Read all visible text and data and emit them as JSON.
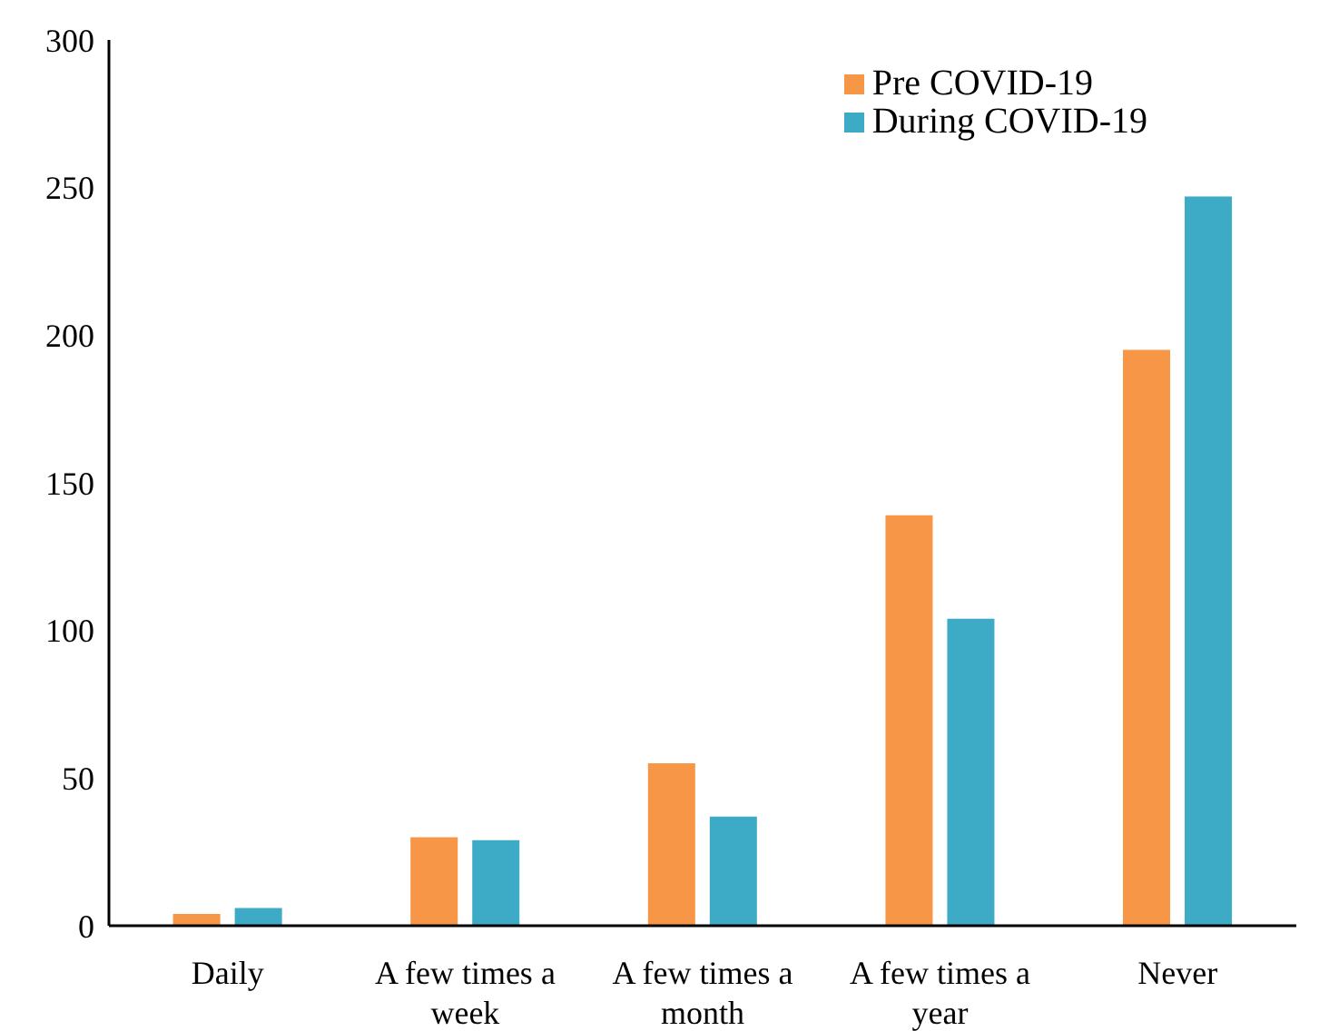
{
  "chart_data": {
    "type": "bar",
    "categories": [
      "Daily",
      "A few times a week",
      "A few times a month",
      "A few times a year",
      "Never"
    ],
    "series": [
      {
        "name": "Pre COVID-19",
        "color": "#f79646",
        "values": [
          4,
          30,
          55,
          139,
          195
        ]
      },
      {
        "name": "During COVID-19",
        "color": "#3daac6",
        "values": [
          6,
          29,
          37,
          104,
          247
        ]
      }
    ],
    "ylim": [
      0,
      300
    ],
    "yticks": [
      0,
      50,
      100,
      150,
      200,
      250,
      300
    ],
    "grid": false,
    "legend": "top right"
  }
}
